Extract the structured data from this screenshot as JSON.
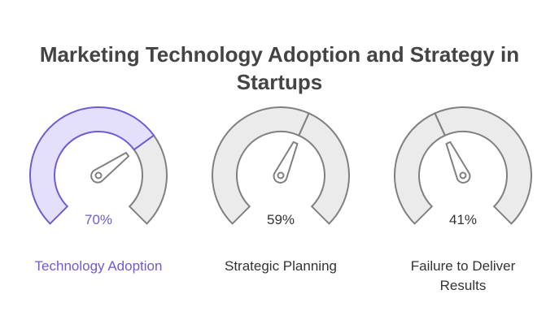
{
  "title": "Marketing Technology Adoption and Strategy in Startups",
  "colors": {
    "accent": "#6f5bd3",
    "accent_fill": "#e4e0fb",
    "neutral_fill": "#ebebeb",
    "neutral_stroke": "#808080",
    "text": "#333333"
  },
  "gauges": [
    {
      "label": "Technology Adoption",
      "value": 70,
      "value_text": "70%",
      "highlighted": true
    },
    {
      "label": "Strategic Planning",
      "value": 59,
      "value_text": "59%",
      "highlighted": false
    },
    {
      "label": "Failure to Deliver Results",
      "value": 41,
      "value_text": "41%",
      "highlighted": false
    }
  ]
}
